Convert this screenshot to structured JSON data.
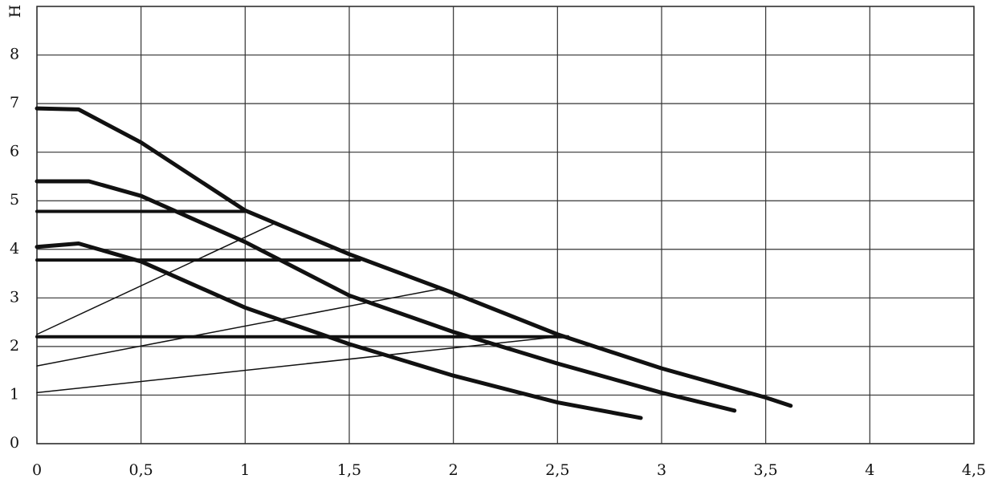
{
  "chart_data": {
    "type": "line",
    "y_label": "H",
    "xlim": [
      0,
      4.5
    ],
    "ylim": [
      0,
      9
    ],
    "xticks": [
      0,
      {
        "value": 0.5,
        "label": "0,5"
      },
      1,
      {
        "value": 1.5,
        "label": "1,5"
      },
      2,
      {
        "value": 2.5,
        "label": "2,5"
      },
      3,
      {
        "value": 3.5,
        "label": "3,5"
      },
      4,
      {
        "value": 4.5,
        "label": "4,5"
      }
    ],
    "yticks": [
      0,
      1,
      2,
      3,
      4,
      5,
      6,
      7,
      8
    ],
    "grid": true,
    "series": [
      {
        "color": "#111111",
        "linewidth": 5,
        "x": [
          0,
          0.2,
          0.5,
          1,
          1.5,
          2,
          2.5,
          3,
          3.5,
          3.62
        ],
        "values": [
          6.9,
          6.88,
          6.2,
          4.8,
          3.9,
          3.1,
          2.25,
          1.55,
          0.95,
          0.78
        ]
      },
      {
        "color": "#111111",
        "linewidth": 5,
        "x": [
          0,
          0.25,
          0.5,
          1,
          1.5,
          2,
          2.5,
          3,
          3.35
        ],
        "values": [
          5.4,
          5.4,
          5.1,
          4.15,
          3.05,
          2.3,
          1.65,
          1.05,
          0.68
        ]
      },
      {
        "color": "#111111",
        "linewidth": 5,
        "x": [
          0,
          0.2,
          0.5,
          1,
          1.5,
          2,
          2.5,
          2.9
        ],
        "values": [
          4.05,
          4.12,
          3.75,
          2.8,
          2.05,
          1.4,
          0.85,
          0.53
        ]
      },
      {
        "color": "#111111",
        "linewidth": 4,
        "x": [
          0,
          1.0
        ],
        "values": [
          4.78,
          4.78
        ]
      },
      {
        "color": "#111111",
        "linewidth": 4,
        "x": [
          0,
          1.55
        ],
        "values": [
          3.78,
          3.78
        ]
      },
      {
        "color": "#111111",
        "linewidth": 4,
        "x": [
          0,
          2.55
        ],
        "values": [
          2.2,
          2.2
        ]
      },
      {
        "color": "#111111",
        "linewidth": 1.5,
        "x": [
          0,
          1.15
        ],
        "values": [
          2.25,
          4.55
        ]
      },
      {
        "color": "#111111",
        "linewidth": 1.5,
        "x": [
          0,
          1.95
        ],
        "values": [
          1.6,
          3.2
        ]
      },
      {
        "color": "#111111",
        "linewidth": 1.5,
        "x": [
          0,
          2.5
        ],
        "values": [
          1.05,
          2.2
        ]
      }
    ]
  }
}
